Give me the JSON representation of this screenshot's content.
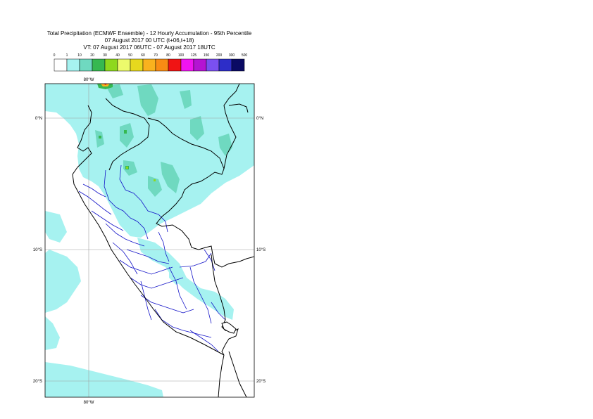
{
  "header": {
    "title_line1": "Total Precipitation (ECMWF Ensemble) - 12 Hourly Accumulation - 95th Percentile",
    "title_line2": "07 August 2017 00 UTC (t+06,t+18)",
    "title_line3": "VT: 07 August 2017 06UTC - 07 August 2017 18UTC"
  },
  "legend": {
    "levels": [
      "0",
      "1",
      "10",
      "20",
      "30",
      "40",
      "50",
      "60",
      "70",
      "80",
      "100",
      "125",
      "150",
      "200",
      "300",
      "500"
    ],
    "colors": [
      "#ffffff",
      "#a6f2f0",
      "#6fd9c0",
      "#36b850",
      "#8ed81e",
      "#ecfa6c",
      "#e6d81e",
      "#f9b21e",
      "#f98c14",
      "#f01414",
      "#f014f0",
      "#b414d2",
      "#7a50f0",
      "#2d2dc8",
      "#0a0a64"
    ]
  },
  "map": {
    "lat_labels": [
      "0°N",
      "10°S",
      "20°S"
    ],
    "lon_labels": [
      "80°W"
    ],
    "colors": {
      "light_precip": "#a6f2f0",
      "medium_precip": "#6fd9c0",
      "country_border": "#000000",
      "region_border": "#1414c8",
      "grid": "#a0a0a0"
    }
  }
}
